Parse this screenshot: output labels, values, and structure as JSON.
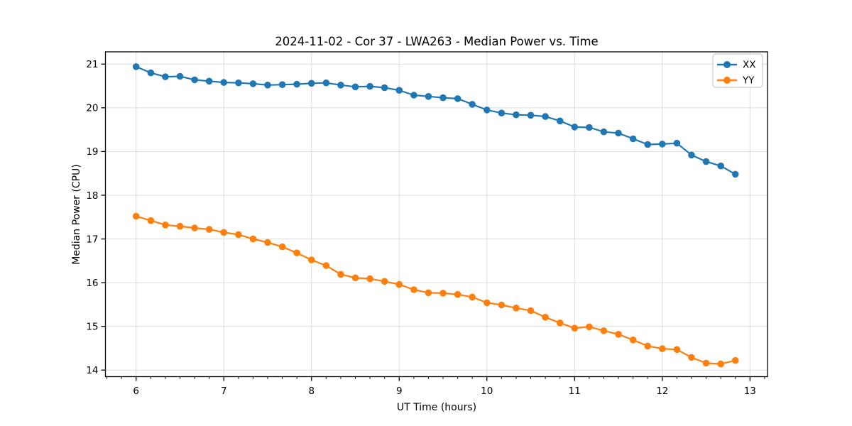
{
  "chart_data": {
    "type": "line",
    "title": "2024-11-02 - Cor 37 - LWA263 - Median Power vs. Time",
    "xlabel": "UT Time (hours)",
    "ylabel": "Median Power (CPU)",
    "xlim": [
      5.65,
      13.2
    ],
    "ylim": [
      13.85,
      21.28
    ],
    "grid": true,
    "legend_position": "top-right",
    "x_major_ticks": [
      6,
      7,
      8,
      9,
      10,
      11,
      12,
      13
    ],
    "x_tick_labels": [
      "6",
      "7",
      "8",
      "9",
      "10",
      "11",
      "12",
      "13"
    ],
    "x_minor_tick_step": 0.16667,
    "y_major_ticks": [
      14,
      15,
      16,
      17,
      18,
      19,
      20,
      21
    ],
    "y_tick_labels": [
      "14",
      "15",
      "16",
      "17",
      "18",
      "19",
      "20",
      "21"
    ],
    "x": [
      6.0,
      6.167,
      6.333,
      6.5,
      6.667,
      6.833,
      7.0,
      7.167,
      7.333,
      7.5,
      7.667,
      7.833,
      8.0,
      8.167,
      8.333,
      8.5,
      8.667,
      8.833,
      9.0,
      9.167,
      9.333,
      9.5,
      9.667,
      9.833,
      10.0,
      10.167,
      10.333,
      10.5,
      10.667,
      10.833,
      11.0,
      11.167,
      11.333,
      11.5,
      11.667,
      11.833,
      12.0,
      12.167,
      12.333,
      12.5,
      12.667,
      12.833
    ],
    "series": [
      {
        "name": "XX",
        "color": "#1f77b4",
        "values": [
          20.94,
          20.8,
          20.71,
          20.72,
          20.64,
          20.61,
          20.58,
          20.57,
          20.55,
          20.52,
          20.53,
          20.54,
          20.56,
          20.57,
          20.52,
          20.48,
          20.49,
          20.46,
          20.4,
          20.29,
          20.26,
          20.23,
          20.21,
          20.08,
          19.95,
          19.88,
          19.84,
          19.83,
          19.8,
          19.7,
          19.56,
          19.55,
          19.45,
          19.42,
          19.29,
          19.16,
          19.17,
          19.19,
          18.92,
          18.77,
          18.67,
          18.48
        ]
      },
      {
        "name": "YY",
        "color": "#ff7f0e",
        "values": [
          17.52,
          17.42,
          17.32,
          17.29,
          17.25,
          17.22,
          17.15,
          17.1,
          17.0,
          16.92,
          16.82,
          16.68,
          16.52,
          16.39,
          16.19,
          16.11,
          16.09,
          16.03,
          15.96,
          15.84,
          15.77,
          15.76,
          15.73,
          15.67,
          15.54,
          15.49,
          15.42,
          15.36,
          15.21,
          15.08,
          14.96,
          14.99,
          14.9,
          14.82,
          14.69,
          14.55,
          14.49,
          14.47,
          14.29,
          14.16,
          14.14,
          14.22
        ]
      }
    ],
    "style": {
      "grid_color": "#dcdcdc",
      "spine_color": "#000000",
      "background": "#ffffff",
      "legend_border_color": "#cccccc"
    }
  }
}
